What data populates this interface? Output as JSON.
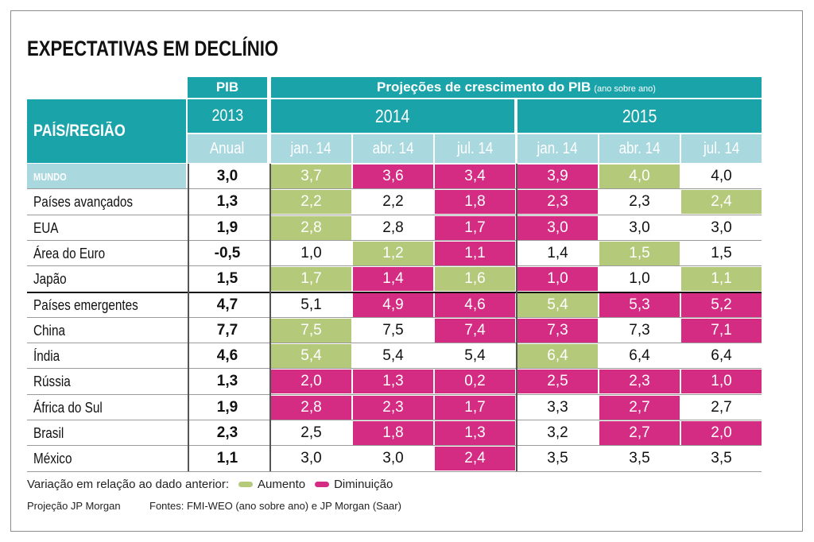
{
  "title": "EXPECTATIVAS EM DECLÍNIO",
  "header": {
    "pib": "PIB",
    "projections": "Projeções de crescimento do PIB",
    "projections_note": "(ano sobre ano)",
    "country_col": "PAÍS/REGIÃO",
    "year_2013": "2013",
    "year_2014": "2014",
    "year_2015": "2015",
    "annual": "Anual",
    "sub_cols": [
      "jan. 14",
      "abr. 14",
      "jul. 14",
      "jan. 14",
      "abr. 14",
      "jul. 14"
    ]
  },
  "colors": {
    "teal": "#1ba3aa",
    "light_teal": "#a9d8df",
    "increase": "#b4c97a",
    "decrease": "#d42b83"
  },
  "chart_data": {
    "type": "table",
    "title": "EXPECTATIVAS EM DECLÍNIO",
    "rows": [
      {
        "name": "MUNDO",
        "pib2013": "3,0",
        "values": [
          "3,7",
          "3,6",
          "3,4",
          "3,9",
          "4,0",
          "4,0"
        ],
        "changes": [
          "up",
          "down",
          "down",
          "down",
          "up",
          "none"
        ]
      },
      {
        "name": "Países avançados",
        "pib2013": "1,3",
        "values": [
          "2,2",
          "2,2",
          "1,8",
          "2,3",
          "2,3",
          "2,4"
        ],
        "changes": [
          "up",
          "none",
          "down",
          "down",
          "none",
          "up"
        ]
      },
      {
        "name": "EUA",
        "pib2013": "1,9",
        "values": [
          "2,8",
          "2,8",
          "1,7",
          "3,0",
          "3,0",
          "3,0"
        ],
        "changes": [
          "up",
          "none",
          "down",
          "down",
          "none",
          "none"
        ]
      },
      {
        "name": "Área do Euro",
        "pib2013": "-0,5",
        "values": [
          "1,0",
          "1,2",
          "1,1",
          "1,4",
          "1,5",
          "1,5"
        ],
        "changes": [
          "none",
          "up",
          "down",
          "none",
          "up",
          "none"
        ]
      },
      {
        "name": "Japão",
        "pib2013": "1,5",
        "values": [
          "1,7",
          "1,4",
          "1,6",
          "1,0",
          "1,0",
          "1,1"
        ],
        "changes": [
          "up",
          "down",
          "up",
          "down",
          "none",
          "up"
        ]
      },
      {
        "name": "Países emergentes",
        "pib2013": "4,7",
        "values": [
          "5,1",
          "4,9",
          "4,6",
          "5,4",
          "5,3",
          "5,2"
        ],
        "changes": [
          "none",
          "down",
          "down",
          "up",
          "down",
          "down"
        ]
      },
      {
        "name": "China",
        "pib2013": "7,7",
        "values": [
          "7,5",
          "7,5",
          "7,4",
          "7,3",
          "7,3",
          "7,1"
        ],
        "changes": [
          "up",
          "none",
          "down",
          "down",
          "none",
          "down"
        ]
      },
      {
        "name": "Índia",
        "pib2013": "4,6",
        "values": [
          "5,4",
          "5,4",
          "5,4",
          "6,4",
          "6,4",
          "6,4"
        ],
        "changes": [
          "up",
          "none",
          "none",
          "up",
          "none",
          "none"
        ]
      },
      {
        "name": "Rússia",
        "pib2013": "1,3",
        "values": [
          "2,0",
          "1,3",
          "0,2",
          "2,5",
          "2,3",
          "1,0"
        ],
        "changes": [
          "down",
          "down",
          "down",
          "down",
          "down",
          "down"
        ]
      },
      {
        "name": "África do Sul",
        "pib2013": "1,9",
        "values": [
          "2,8",
          "2,3",
          "1,7",
          "3,3",
          "2,7",
          "2,7"
        ],
        "changes": [
          "down",
          "down",
          "down",
          "none",
          "down",
          "none"
        ]
      },
      {
        "name": "Brasil",
        "pib2013": "2,3",
        "values": [
          "2,5",
          "1,8",
          "1,3",
          "3,2",
          "2,7",
          "2,0"
        ],
        "changes": [
          "none",
          "down",
          "down",
          "none",
          "down",
          "down"
        ]
      },
      {
        "name": "México",
        "pib2013": "1,1",
        "values": [
          "3,0",
          "3,0",
          "2,4",
          "3,5",
          "3,5",
          "3,5"
        ],
        "changes": [
          "none",
          "none",
          "down",
          "none",
          "none",
          "none"
        ]
      }
    ]
  },
  "legend": {
    "label": "Variação em relação ao dado anterior:",
    "increase": "Aumento",
    "decrease": "Diminuição"
  },
  "footer": {
    "projection": "Projeção JP Morgan",
    "sources": "Fontes: FMI-WEO (ano sobre ano) e JP Morgan (Saar)"
  }
}
